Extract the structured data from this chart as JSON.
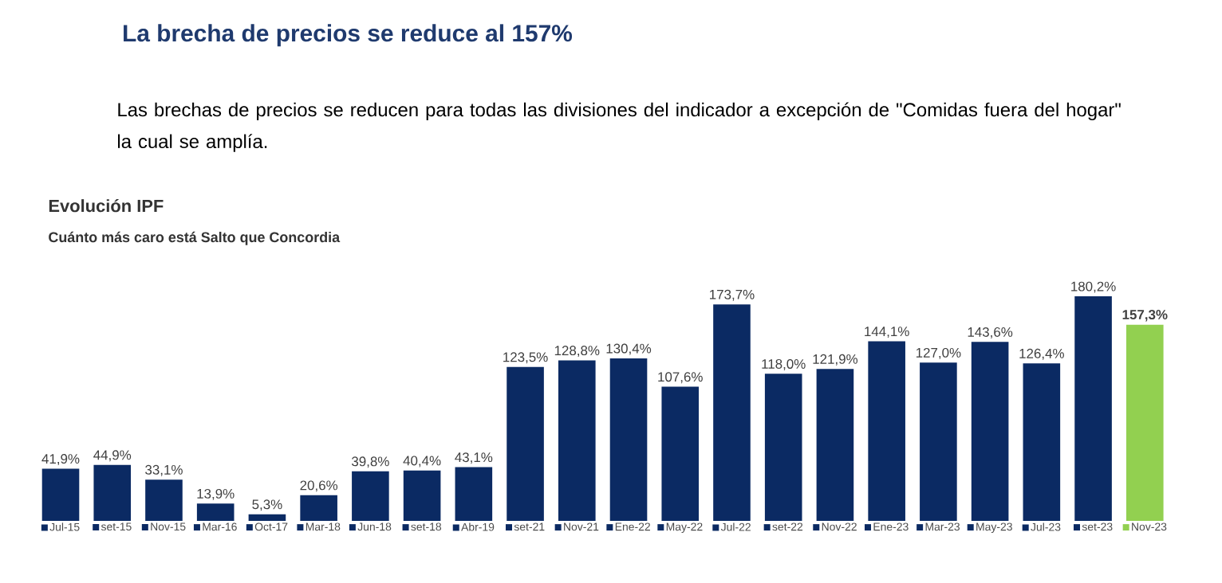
{
  "chart_data": {
    "type": "bar",
    "title": "La brecha de precios se reduce al 157%",
    "subtitle": "Las brechas de precios se reducen para todas las divisiones del indicador a excepción de \"Comidas fuera del hogar\" la cual se amplía.",
    "annotations": [
      "Evolución IPF",
      "Cuánto más caro está Salto que Concordia"
    ],
    "categories": [
      "Jul-15",
      "set-15",
      "Nov-15",
      "Mar-16",
      "Oct-17",
      "Mar-18",
      "Jun-18",
      "set-18",
      "Abr-19",
      "set-21",
      "Nov-21",
      "Ene-22",
      "May-22",
      "Jul-22",
      "set-22",
      "Nov-22",
      "Ene-23",
      "Mar-23",
      "May-23",
      "Jul-23",
      "set-23",
      "Nov-23"
    ],
    "values": [
      41.9,
      44.9,
      33.1,
      13.9,
      5.3,
      20.6,
      39.8,
      40.4,
      43.1,
      123.5,
      128.8,
      130.4,
      107.6,
      173.7,
      118.0,
      121.9,
      144.1,
      127.0,
      143.6,
      126.4,
      180.2,
      157.3
    ],
    "value_labels": [
      "41,9%",
      "44,9%",
      "33,1%",
      "13,9%",
      "5,3%",
      "20,6%",
      "39,8%",
      "40,4%",
      "43,1%",
      "123,5%",
      "128,8%",
      "130,4%",
      "107,6%",
      "173,7%",
      "118,0%",
      "121,9%",
      "144,1%",
      "127,0%",
      "143,6%",
      "126,4%",
      "180,2%",
      "**157,3%**"
    ],
    "colors": [
      "#0b2a63",
      "#0b2a63",
      "#0b2a63",
      "#0b2a63",
      "#0b2a63",
      "#0b2a63",
      "#0b2a63",
      "#0b2a63",
      "#0b2a63",
      "#0b2a63",
      "#0b2a63",
      "#0b2a63",
      "#0b2a63",
      "#0b2a63",
      "#0b2a63",
      "#0b2a63",
      "#0b2a63",
      "#0b2a63",
      "#0b2a63",
      "#0b2a63",
      "#0b2a63",
      "#92d050"
    ]
  }
}
